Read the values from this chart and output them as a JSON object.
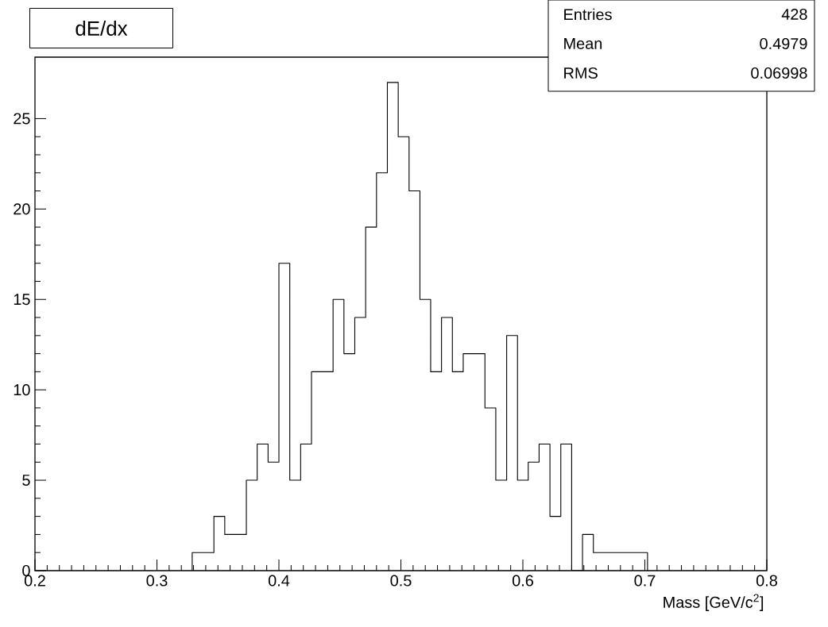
{
  "chart_data": {
    "type": "histogram",
    "title": "dE/dx",
    "xlabel": "Mass [GeV/c$^{2}$]",
    "annotations": [
      "Entries",
      "428",
      "Mean",
      "0.4979",
      "RMS",
      "0.06998"
    ],
    "bins": [
      0.3289,
      0.3378,
      0.3467,
      0.3556,
      0.3644,
      0.3733,
      0.3822,
      0.3911,
      0.4,
      0.4089,
      0.4178,
      0.4267,
      0.4356,
      0.4444,
      0.4533,
      0.4622,
      0.4711,
      0.48,
      0.4889,
      0.4978,
      0.5067,
      0.5156,
      0.5244,
      0.5333,
      0.5422,
      0.5511,
      0.56,
      0.5689,
      0.5778,
      0.5867,
      0.5956,
      0.6044,
      0.6133,
      0.6222,
      0.6311,
      0.64,
      0.6489,
      0.6578,
      0.6667,
      0.6756,
      0.6844,
      0.6933,
      0.7022
    ],
    "values": [
      1,
      1,
      3,
      2,
      2,
      5,
      7,
      6,
      17,
      5,
      7,
      11,
      11,
      15,
      12,
      14,
      19,
      22,
      27,
      24,
      21,
      15,
      11,
      14,
      11,
      12,
      12,
      9,
      5,
      13,
      5,
      6,
      7,
      3,
      7,
      0,
      2,
      1,
      1,
      1,
      1,
      1
    ],
    "color": "#000000",
    "xlim": [
      0.2,
      0.8
    ],
    "ylim": [
      0,
      28.4
    ],
    "xticks": [
      0.2,
      0.3,
      0.4,
      0.5,
      0.6,
      0.7,
      0.8
    ],
    "yticks": [
      0,
      5,
      10,
      15,
      20,
      25
    ]
  }
}
